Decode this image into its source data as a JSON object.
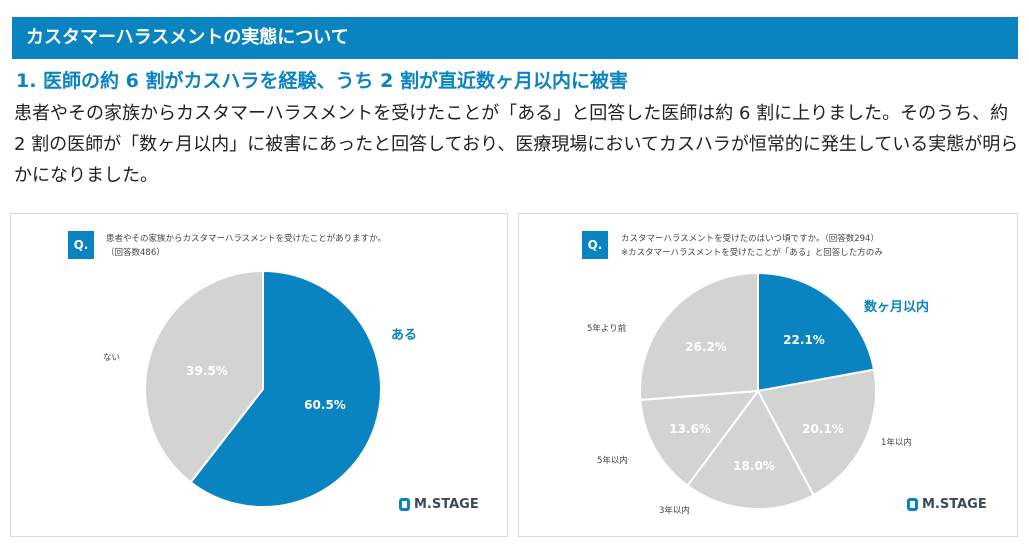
{
  "header": {
    "title": "カスタマーハラスメントの実態について"
  },
  "section": {
    "heading": "1. 医師の約 6 割がカスハラを経験、うち 2 割が直近数ヶ月以内に被害",
    "body": "患者やその家族からカスタマーハラスメントを受けたことが「ある」と回答した医師は約 6 割に上りました。そのうち、約 2 割の医師が「数ヶ月以内」に被害にあったと回答しており、医療現場においてカスハラが恒常的に発生している実態が明らかになりました。"
  },
  "logo_text": "M.STAGE",
  "colors": {
    "accent": "#0a84c0",
    "gray": "#d3d3d3"
  },
  "chart_data": [
    {
      "type": "pie",
      "q_badge": "Q.",
      "question": "患者やその家族からカスタマーハラスメントを受けたことがありますか。",
      "note": "（回答数486）",
      "categories": [
        "ある",
        "ない"
      ],
      "values": [
        60.5,
        39.5
      ],
      "labels": [
        "60.5%",
        "39.5%"
      ],
      "colors": [
        "#0a84c0",
        "#d3d3d3"
      ]
    },
    {
      "type": "pie",
      "q_badge": "Q.",
      "question": "カスタマーハラスメントを受けたのはいつ頃ですか。（回答数294）",
      "note": "※カスタマーハラスメントを受けたことが「ある」と回答した方のみ",
      "categories": [
        "数ヶ月以内",
        "1年以内",
        "3年以内",
        "5年以内",
        "5年より前"
      ],
      "values": [
        22.1,
        20.1,
        18.0,
        13.6,
        26.2
      ],
      "labels": [
        "22.1%",
        "20.1%",
        "18.0%",
        "13.6%",
        "26.2%"
      ],
      "colors": [
        "#0a84c0",
        "#d3d3d3",
        "#d3d3d3",
        "#d3d3d3",
        "#d3d3d3"
      ]
    }
  ]
}
